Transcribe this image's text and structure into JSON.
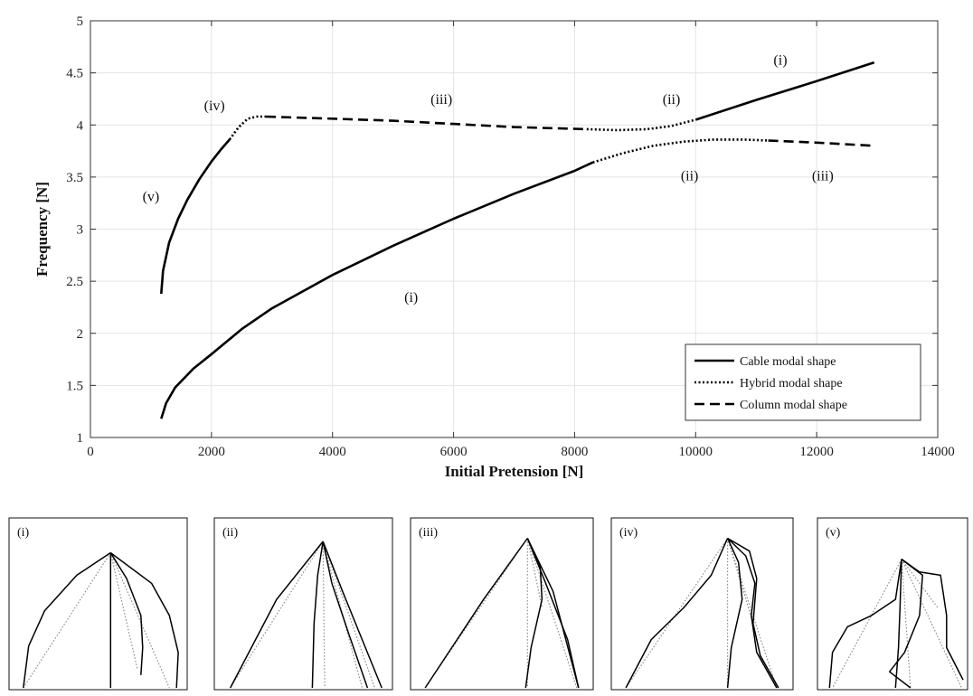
{
  "chart_data": {
    "type": "line",
    "xlabel": "Initial Pretension [N]",
    "ylabel": "Frequency [N]",
    "xlim": [
      0,
      14000
    ],
    "ylim": [
      1,
      5
    ],
    "xticks": [
      0,
      2000,
      4000,
      6000,
      8000,
      10000,
      12000,
      14000
    ],
    "yticks": [
      1,
      1.5,
      2,
      2.5,
      3,
      3.5,
      4,
      4.5,
      5
    ],
    "xtick_labels": [
      "0",
      "2000",
      "4000",
      "6000",
      "8000",
      "10000",
      "12000",
      "14000"
    ],
    "ytick_labels": [
      "1",
      "1.5",
      "2",
      "2.5",
      "3",
      "3.5",
      "4",
      "4.5",
      "5"
    ],
    "grid": true,
    "legend_position": "bottom-right",
    "legend": [
      {
        "label": "Cable modal shape",
        "style": "solid"
      },
      {
        "label": "Hybrid modal shape",
        "style": "dotted"
      },
      {
        "label": "Column modal shape",
        "style": "dashed"
      }
    ],
    "series": [
      {
        "mode": "upper",
        "style": "solid",
        "x": [
          1170,
          1200,
          1300,
          1450,
          1600,
          1800,
          2000,
          2150,
          2300
        ],
        "y": [
          2.38,
          2.6,
          2.87,
          3.1,
          3.28,
          3.48,
          3.65,
          3.76,
          3.86
        ]
      },
      {
        "mode": "upper",
        "style": "dotted",
        "x": [
          2300,
          2450,
          2600,
          2750,
          2900
        ],
        "y": [
          3.86,
          3.98,
          4.06,
          4.08,
          4.08
        ]
      },
      {
        "mode": "upper",
        "style": "dashed",
        "x": [
          2900,
          4000,
          5000,
          6000,
          7000,
          8200
        ],
        "y": [
          4.08,
          4.06,
          4.04,
          4.01,
          3.98,
          3.96
        ]
      },
      {
        "mode": "upper",
        "style": "dotted",
        "x": [
          8200,
          8700,
          9200,
          9600,
          10000
        ],
        "y": [
          3.96,
          3.95,
          3.96,
          3.99,
          4.05
        ]
      },
      {
        "mode": "upper",
        "style": "solid",
        "x": [
          10000,
          11000,
          12000,
          12950
        ],
        "y": [
          4.05,
          4.24,
          4.42,
          4.6
        ]
      },
      {
        "mode": "lower",
        "style": "solid",
        "x": [
          1170,
          1250,
          1400,
          1700,
          2000,
          2500,
          3000,
          3500,
          4000,
          5000,
          6000,
          7000,
          8000,
          8300
        ],
        "y": [
          1.18,
          1.33,
          1.48,
          1.66,
          1.8,
          2.04,
          2.24,
          2.4,
          2.56,
          2.84,
          3.1,
          3.34,
          3.56,
          3.64
        ]
      },
      {
        "mode": "lower",
        "style": "dotted",
        "x": [
          8300,
          8800,
          9300,
          9800,
          10300,
          10800,
          11200
        ],
        "y": [
          3.64,
          3.73,
          3.8,
          3.84,
          3.86,
          3.86,
          3.85
        ]
      },
      {
        "mode": "lower",
        "style": "dashed",
        "x": [
          11200,
          12000,
          12950
        ],
        "y": [
          3.85,
          3.83,
          3.8
        ]
      }
    ],
    "annotations": [
      {
        "text": "(i)",
        "x": 11400,
        "y": 4.58
      },
      {
        "text": "(ii)",
        "x": 9600,
        "y": 4.2
      },
      {
        "text": "(iii)",
        "x": 5800,
        "y": 4.2
      },
      {
        "text": "(iv)",
        "x": 2050,
        "y": 4.14
      },
      {
        "text": "(v)",
        "x": 1000,
        "y": 3.27
      },
      {
        "text": "(i)",
        "x": 5300,
        "y": 2.3
      },
      {
        "text": "(ii)",
        "x": 9900,
        "y": 3.47
      },
      {
        "text": "(iii)",
        "x": 12100,
        "y": 3.47
      }
    ]
  },
  "panels": [
    {
      "label": "(i)"
    },
    {
      "label": "(ii)"
    },
    {
      "label": "(iii)"
    },
    {
      "label": "(iv)"
    },
    {
      "label": "(v)"
    }
  ]
}
